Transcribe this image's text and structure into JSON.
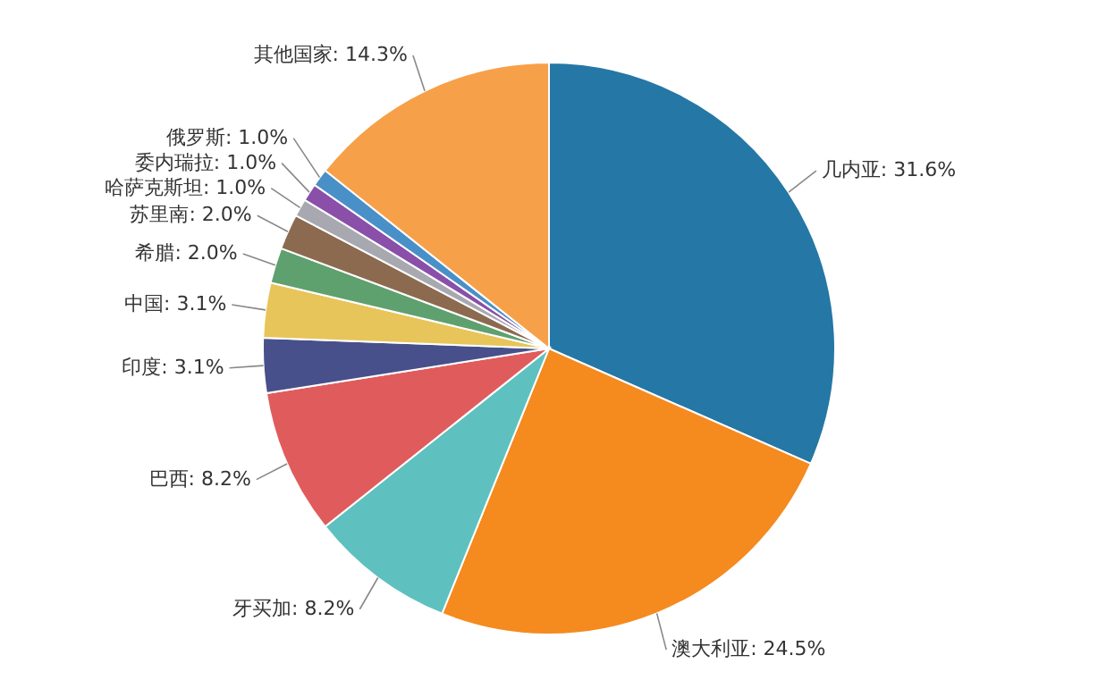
{
  "chart_data": {
    "type": "pie",
    "categories": [
      "几内亚",
      "澳大利亚",
      "牙买加",
      "巴西",
      "印度",
      "中国",
      "希腊",
      "苏里南",
      "哈萨克斯坦",
      "委内瑞拉",
      "俄罗斯",
      "其他国家"
    ],
    "values": [
      31.6,
      24.5,
      8.2,
      8.2,
      3.1,
      3.1,
      2.0,
      2.0,
      1.0,
      1.0,
      1.0,
      14.3
    ],
    "value_labels": [
      "31.6%",
      "24.5%",
      "8.2%",
      "8.2%",
      "3.1%",
      "3.1%",
      "2.0%",
      "2.0%",
      "1.0%",
      "1.0%",
      "1.0%",
      "14.3%"
    ],
    "colors": [
      "#2577a5",
      "#f58a1f",
      "#5fc0c0",
      "#e05c5c",
      "#47508a",
      "#e8c55a",
      "#5fa06f",
      "#8c6a50",
      "#a8a8b0",
      "#8a4fa8",
      "#4a90c8",
      "#f7a04a"
    ],
    "legend": false
  }
}
